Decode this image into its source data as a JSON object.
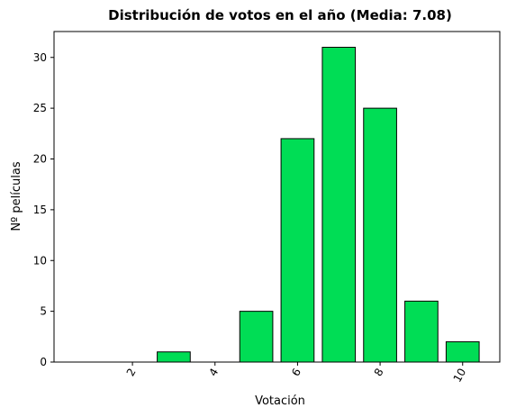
{
  "chart_data": {
    "type": "bar",
    "title": "Distribución de votos en el año (Media: 7.08)",
    "xlabel": "Votación",
    "ylabel": "Nº películas",
    "categories": [
      1,
      2,
      3,
      4,
      5,
      6,
      7,
      8,
      9,
      10
    ],
    "values": [
      0,
      0,
      1,
      0,
      5,
      22,
      31,
      25,
      6,
      2
    ],
    "x_ticks": [
      2,
      4,
      6,
      8,
      10
    ],
    "y_ticks": [
      0,
      5,
      10,
      15,
      20,
      25,
      30
    ],
    "xlim": [
      0.1,
      10.9
    ],
    "ylim": [
      0,
      32.55
    ],
    "bar_color": "#00dd55",
    "edge_color": "#000000",
    "grid": false,
    "legend": "none"
  }
}
